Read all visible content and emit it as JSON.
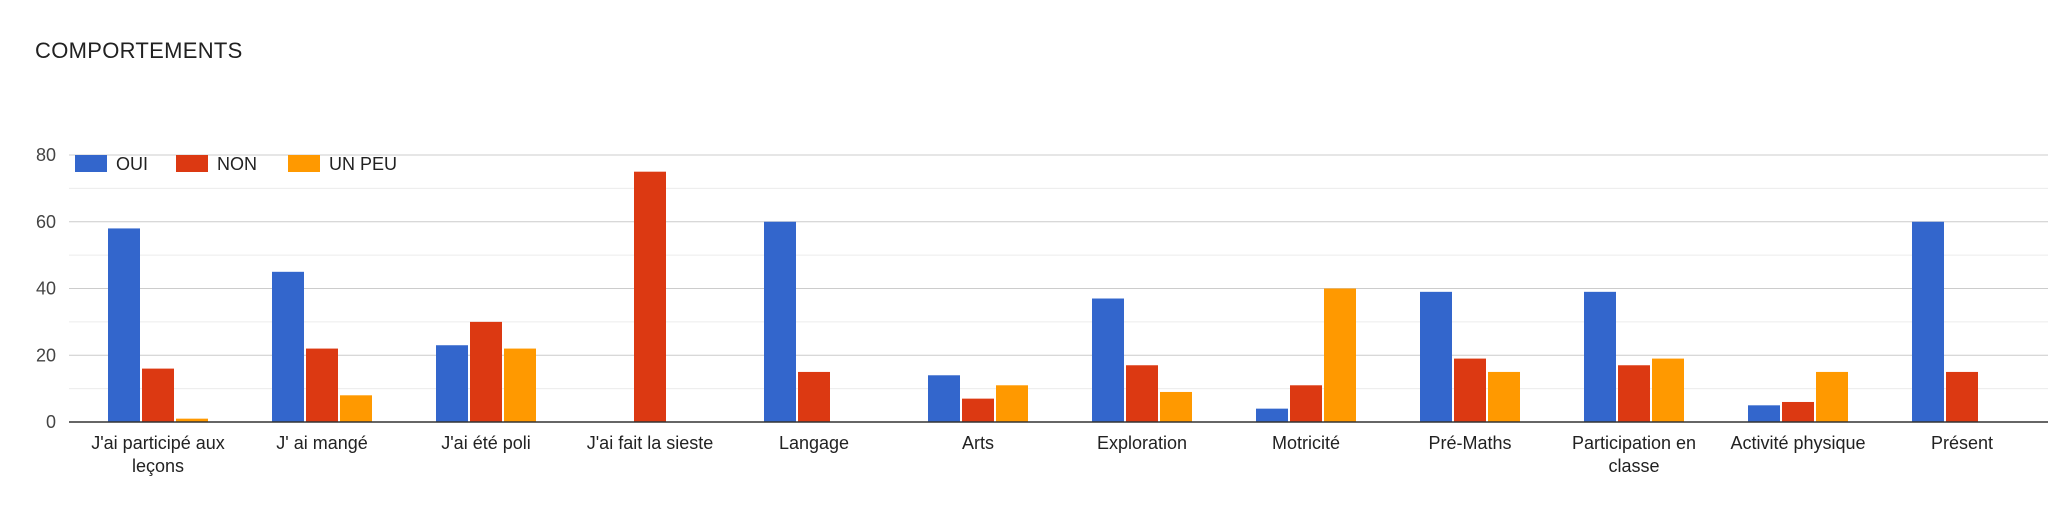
{
  "chart_data": {
    "type": "bar",
    "title": "COMPORTEMENTS",
    "xlabel": "",
    "ylabel": "",
    "ylim": [
      0,
      80
    ],
    "yticks": [
      0,
      20,
      40,
      60,
      80
    ],
    "grid": true,
    "legend_position": "top-left",
    "categories": [
      [
        "J'ai participé aux",
        "leçons"
      ],
      [
        "J' ai mangé"
      ],
      [
        "J'ai été poli"
      ],
      [
        "J'ai fait la sieste"
      ],
      [
        "Langage"
      ],
      [
        "Arts"
      ],
      [
        "Exploration"
      ],
      [
        "Motricité"
      ],
      [
        "Pré-Maths"
      ],
      [
        "Participation en",
        "classe"
      ],
      [
        "Activité physique"
      ],
      [
        "Présent"
      ]
    ],
    "series": [
      {
        "name": "OUI",
        "color": "#3366cc",
        "values": [
          58,
          45,
          23,
          0,
          60,
          14,
          37,
          4,
          39,
          39,
          5,
          60
        ]
      },
      {
        "name": "NON",
        "color": "#dc3912",
        "values": [
          16,
          22,
          30,
          75,
          15,
          7,
          17,
          11,
          19,
          17,
          6,
          15
        ]
      },
      {
        "name": "UN PEU",
        "color": "#ff9900",
        "values": [
          1,
          8,
          22,
          0,
          0,
          11,
          9,
          40,
          15,
          19,
          15,
          0
        ]
      }
    ]
  }
}
